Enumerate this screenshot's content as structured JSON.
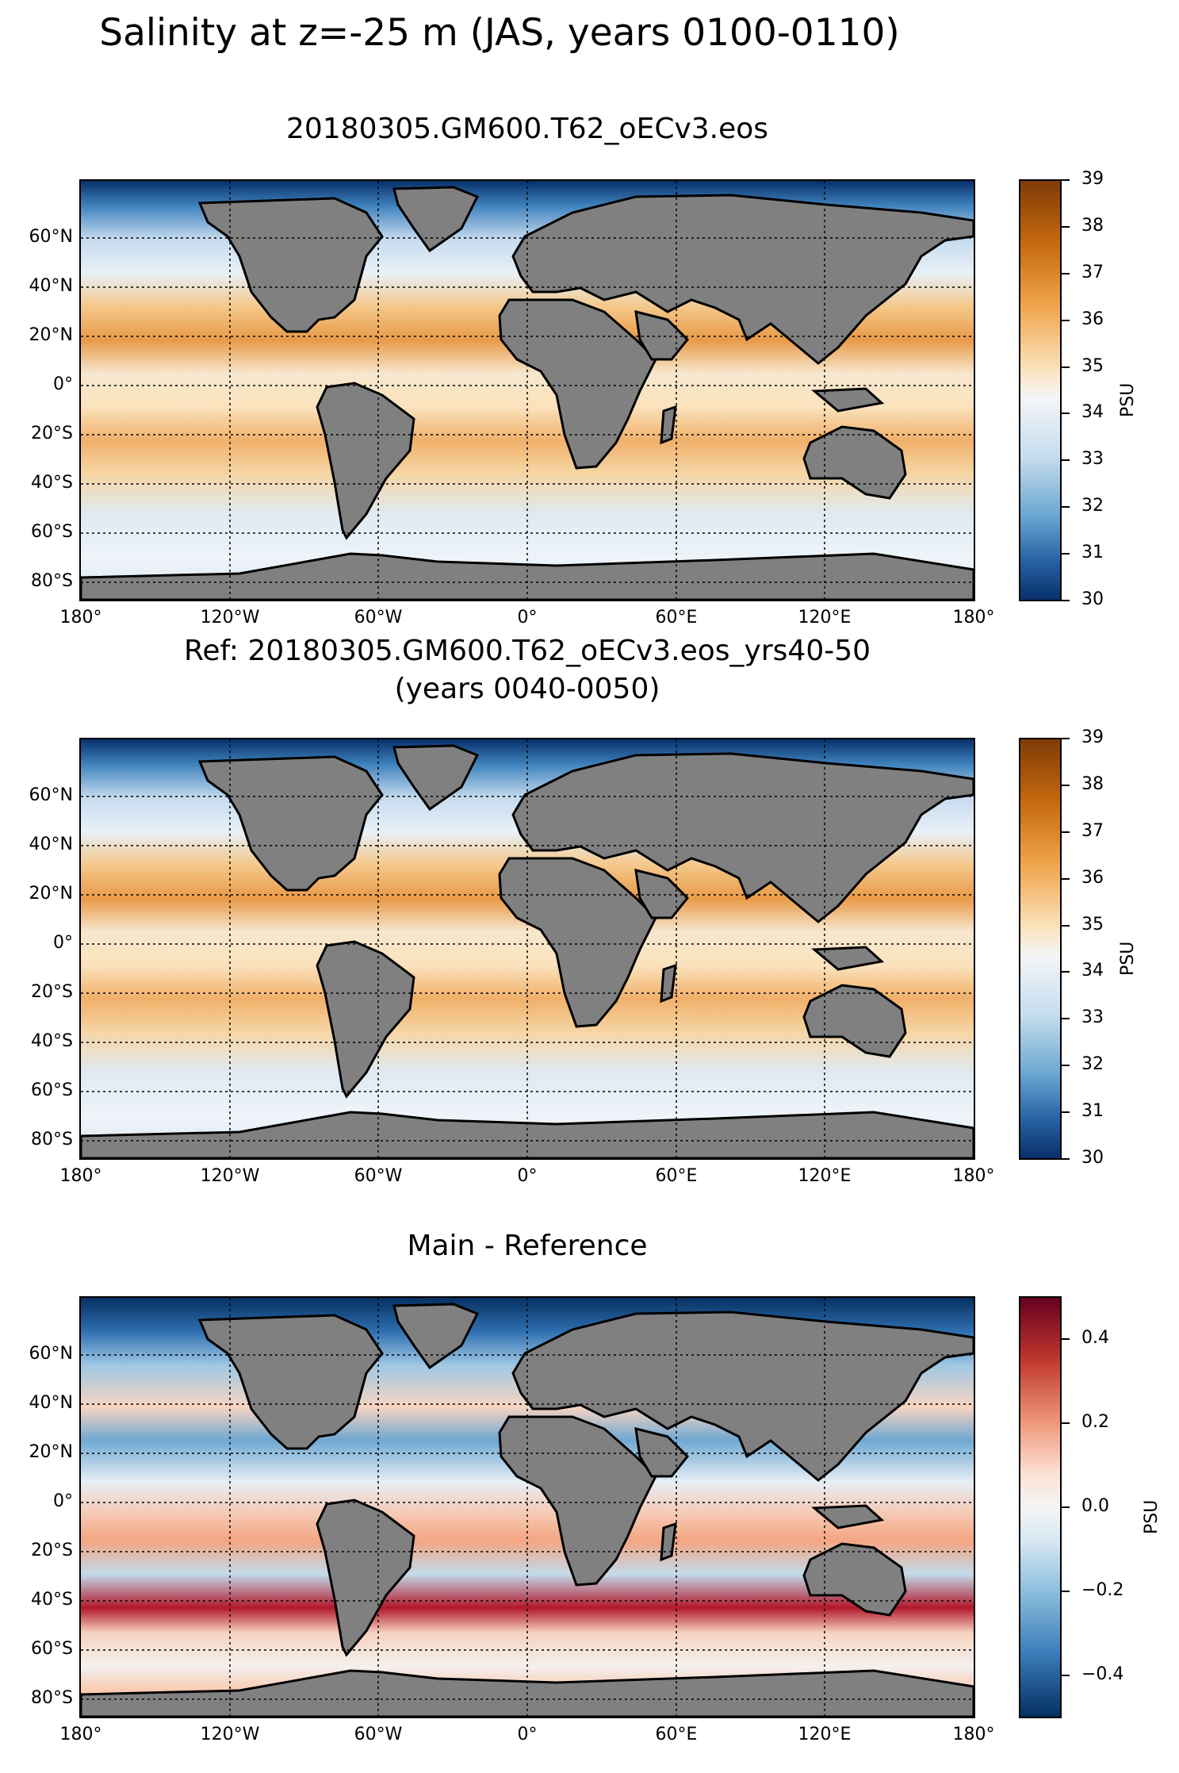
{
  "suptitle": "Salinity at z=-25 m (JAS, years 0100-0110)",
  "panels": [
    {
      "title_line1": "20180305.GM600.T62_oECv3.eos",
      "title_line2": ""
    },
    {
      "title_line1": "Ref: 20180305.GM600.T62_oECv3.eos_yrs40-50",
      "title_line2": "(years 0040-0050)"
    },
    {
      "title_line1": "Main - Reference",
      "title_line2": ""
    }
  ],
  "lat_labels": [
    "60°N",
    "40°N",
    "20°N",
    "0°",
    "20°S",
    "40°S",
    "60°S",
    "80°S"
  ],
  "lon_labels": [
    "180°",
    "120°W",
    "60°W",
    "0°",
    "60°E",
    "120°E",
    "180°"
  ],
  "colorbars": [
    {
      "unit": "PSU",
      "ticks": [
        "39",
        "38",
        "37",
        "36",
        "35",
        "34",
        "33",
        "32",
        "31",
        "30"
      ]
    },
    {
      "unit": "PSU",
      "ticks": [
        "39",
        "38",
        "37",
        "36",
        "35",
        "34",
        "33",
        "32",
        "31",
        "30"
      ]
    },
    {
      "unit": "PSU",
      "ticks": [
        "0.4",
        "0.2",
        "0.0",
        "−0.2",
        "−0.4"
      ]
    }
  ],
  "colors": {
    "land": "#808080",
    "salinity_low": "#08306b",
    "salinity_high": "#7f3b08",
    "diff_low": "#053061",
    "diff_high": "#67001f"
  }
}
